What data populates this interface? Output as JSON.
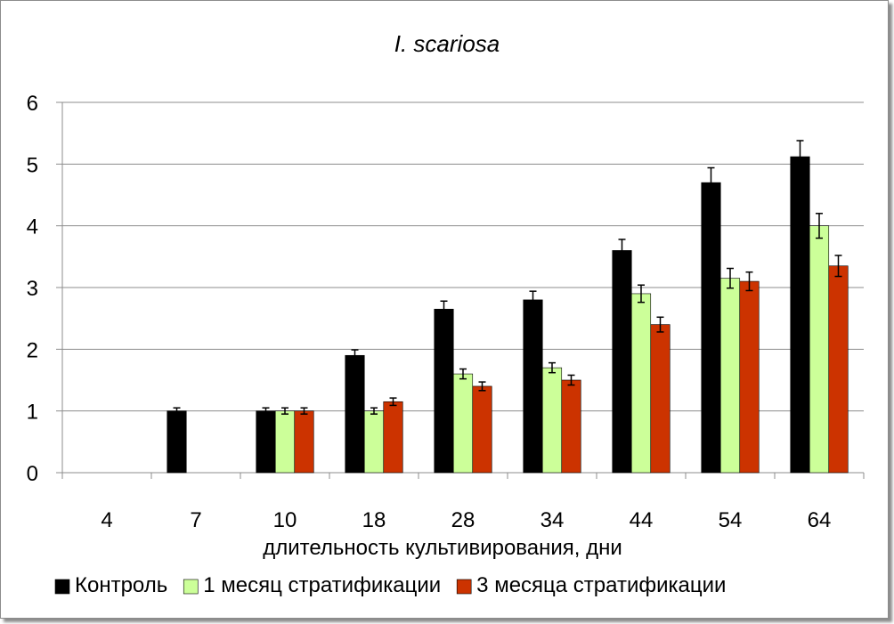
{
  "chart_data": {
    "type": "bar",
    "title": "I. scariosa",
    "xlabel": "длительность культивирования, дни",
    "ylabel": "",
    "ylim": [
      0,
      6
    ],
    "yticks": [
      0,
      1,
      2,
      3,
      4,
      5,
      6
    ],
    "grid": true,
    "legend_position": "bottom",
    "categories": [
      "4",
      "7",
      "10",
      "18",
      "28",
      "34",
      "44",
      "54",
      "64"
    ],
    "series": [
      {
        "name": "Контроль",
        "color": "#000000",
        "values": [
          null,
          1.0,
          1.0,
          1.9,
          2.65,
          2.8,
          3.6,
          4.7,
          5.12
        ],
        "errors": [
          null,
          0.05,
          0.05,
          0.09,
          0.13,
          0.14,
          0.18,
          0.24,
          0.26
        ]
      },
      {
        "name": "1 месяц стратификации",
        "color": "#ccff99",
        "values": [
          null,
          null,
          1.0,
          1.0,
          1.6,
          1.7,
          2.9,
          3.15,
          4.0
        ],
        "errors": [
          null,
          null,
          0.05,
          0.05,
          0.08,
          0.08,
          0.14,
          0.16,
          0.2
        ]
      },
      {
        "name": "3 месяца стратификации",
        "color": "#cc3300",
        "values": [
          null,
          null,
          1.0,
          1.15,
          1.4,
          1.5,
          2.4,
          3.1,
          3.35
        ],
        "errors": [
          null,
          null,
          0.05,
          0.06,
          0.07,
          0.08,
          0.12,
          0.15,
          0.17
        ]
      }
    ]
  }
}
